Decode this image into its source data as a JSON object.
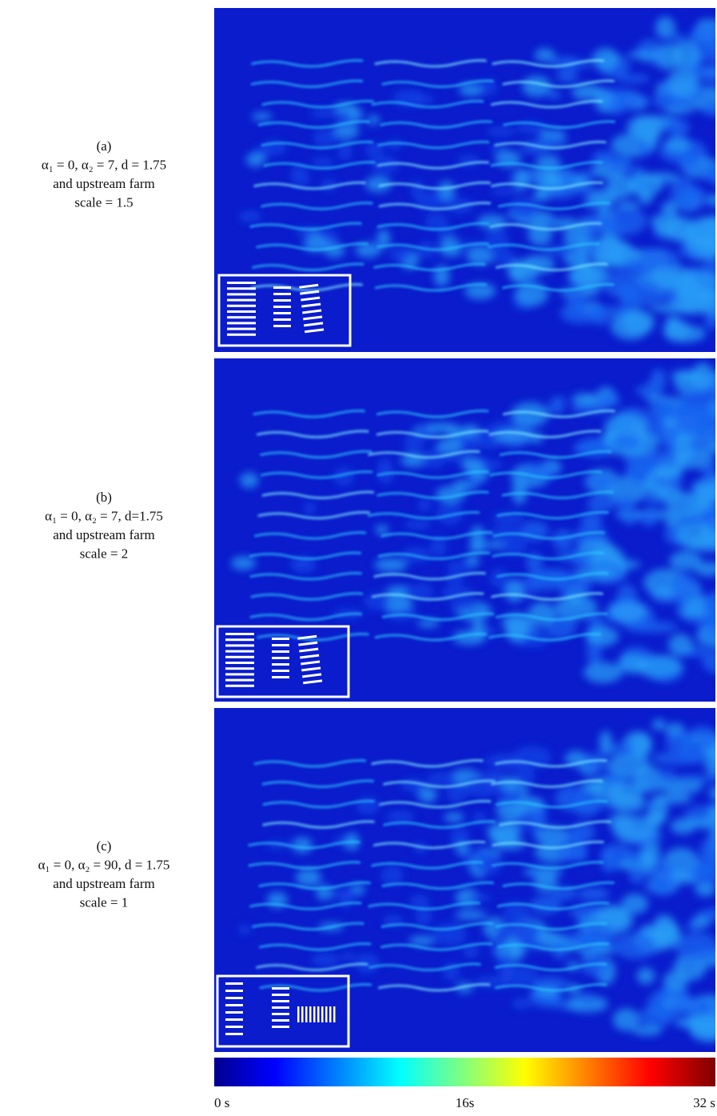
{
  "panels": [
    {
      "label": "(a)",
      "lines": [
        "α₁ = 0, α₂ = 7, d = 1.75",
        "and upstream farm",
        "scale = 1.5"
      ]
    },
    {
      "label": "(b)",
      "lines": [
        "α₁ = 0, α₂ = 7, d=1.75",
        "and upstream farm",
        "scale = 2"
      ]
    },
    {
      "label": "(c)",
      "lines": [
        "α₁ = 0, α₂ = 90, d = 1.75",
        "and upstream farm",
        "scale = 1"
      ]
    }
  ],
  "colorbar": {
    "range": [
      0,
      32
    ],
    "ticks": [
      {
        "value": 0,
        "label": "0 s"
      },
      {
        "value": 16,
        "label": "16s"
      },
      {
        "value": 32,
        "label": "32 s"
      }
    ]
  }
}
